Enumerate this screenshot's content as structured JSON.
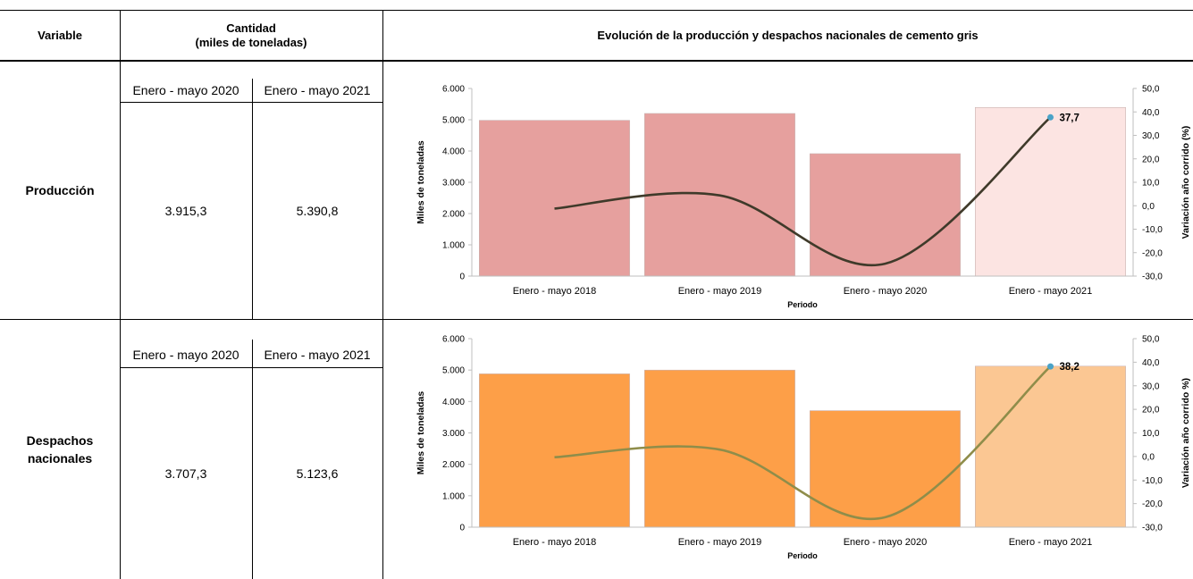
{
  "table": {
    "header_variable": "Variable",
    "header_quantity_line1": "Cantidad",
    "header_quantity_line2": "(miles de toneladas)",
    "header_chart": "Evolución de la producción y despachos nacionales de cemento gris",
    "rows": [
      {
        "variable": "Producción",
        "variable_line1": "Producción",
        "variable_line2": "",
        "col1_label": "Enero - mayo 2020",
        "col2_label": "Enero - mayo 2021",
        "val1": "3.915,3",
        "val2": "5.390,8"
      },
      {
        "variable": "Despachos nacionales",
        "variable_line1": "Despachos",
        "variable_line2": "nacionales",
        "col1_label": "Enero - mayo 2020",
        "col2_label": "Enero - mayo 2021",
        "val1": "3.707,3",
        "val2": "5.123,6"
      }
    ]
  },
  "chart_data": [
    {
      "type": "bar",
      "categories": [
        "Enero - mayo 2018",
        "Enero - mayo 2019",
        "Enero - mayo 2020",
        "Enero - mayo 2021"
      ],
      "series": [
        {
          "values": [
            4980,
            5200,
            3915.3,
            5390.8
          ],
          "axis": "left",
          "colors": [
            "#e6a09e",
            "#e6a09e",
            "#e6a09e",
            "#fce4e2"
          ]
        },
        {
          "type": "line",
          "values": [
            -1.2,
            4.4,
            -24.7,
            37.7
          ],
          "axis": "right",
          "color": "#3f3a2a"
        }
      ],
      "xlabel": "Periodo",
      "ylabel": "Miles de toneladas",
      "y2label": "Variación año corrido  (%)",
      "ylim": [
        0,
        6000
      ],
      "y2lim": [
        -30,
        50
      ],
      "yticks": [
        "0",
        "1.000",
        "2.000",
        "3.000",
        "4.000",
        "5.000",
        "6.000"
      ],
      "y2ticks": [
        "-30,0",
        "-20,0",
        "-10,0",
        "0,0",
        "10,0",
        "20,0",
        "30,0",
        "40,0",
        "50,0"
      ],
      "point_label": "37,7",
      "point_marker_color": "#4aa3c8"
    },
    {
      "type": "bar",
      "categories": [
        "Enero - mayo 2018",
        "Enero - mayo 2019",
        "Enero - mayo 2020",
        "Enero - mayo 2021"
      ],
      "series": [
        {
          "values": [
            4880,
            5000,
            3707.3,
            5123.6
          ],
          "axis": "left",
          "colors": [
            "#fd9f48",
            "#fd9f48",
            "#fd9f48",
            "#fbc793"
          ]
        },
        {
          "type": "line",
          "values": [
            -0.3,
            2.9,
            -25.8,
            38.2
          ],
          "axis": "right",
          "color": "#8f8d4a"
        }
      ],
      "xlabel": "Periodo",
      "ylabel": "Miles de toneladas",
      "y2label": "Variación año corrido  %)",
      "ylim": [
        0,
        6000
      ],
      "y2lim": [
        -30,
        50
      ],
      "yticks": [
        "0",
        "1.000",
        "2.000",
        "3.000",
        "4.000",
        "5.000",
        "6.000"
      ],
      "y2ticks": [
        "-30,0",
        "-20,0",
        "-10,0",
        "0,0",
        "10,0",
        "20,0",
        "30,0",
        "40,0",
        "50,0"
      ],
      "point_label": "38,2",
      "point_marker_color": "#4aa3c8"
    }
  ]
}
